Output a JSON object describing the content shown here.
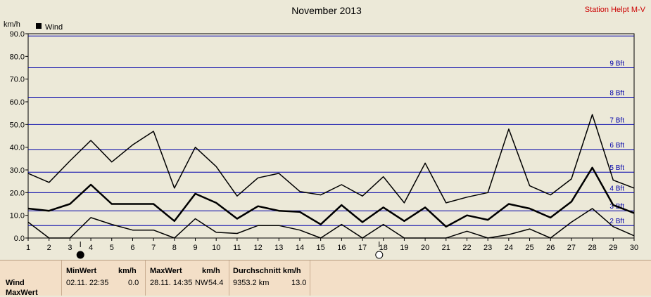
{
  "chart_data": {
    "type": "line",
    "title": "November 2013",
    "station": "Station Helpt M-V",
    "ylabel": "km/h",
    "legend": "Wind",
    "ylim": [
      0,
      90
    ],
    "xlim": [
      1,
      30
    ],
    "yticks": [
      "0.0",
      "10.0",
      "20.0",
      "30.0",
      "40.0",
      "50.0",
      "60.0",
      "70.0",
      "80.0",
      "90.0"
    ],
    "x": [
      1,
      2,
      3,
      4,
      5,
      6,
      7,
      8,
      9,
      10,
      11,
      12,
      13,
      14,
      15,
      16,
      17,
      18,
      19,
      20,
      21,
      22,
      23,
      24,
      25,
      26,
      27,
      28,
      29,
      30
    ],
    "beaufort": [
      {
        "label": "2 Bft",
        "value": 5.5
      },
      {
        "label": "3 Bft",
        "value": 12
      },
      {
        "label": "4 Bft",
        "value": 20
      },
      {
        "label": "5 Bft",
        "value": 29
      },
      {
        "label": "6 Bft",
        "value": 39
      },
      {
        "label": "7 Bft",
        "value": 50
      },
      {
        "label": "8 Bft",
        "value": 62
      },
      {
        "label": "9 Bft",
        "value": 75
      },
      {
        "label": "",
        "value": 89
      }
    ],
    "series": [
      {
        "role": "max",
        "values": [
          28.5,
          24.5,
          34,
          43,
          33.5,
          41,
          47,
          22,
          40,
          31.5,
          18.5,
          26.5,
          28.5,
          20.5,
          19,
          23.5,
          18.5,
          27,
          15.5,
          33,
          15.5,
          18,
          20,
          48,
          23,
          19,
          26,
          54.4,
          25.5,
          22
        ]
      },
      {
        "role": "avg",
        "values": [
          13,
          12,
          15,
          23.5,
          15,
          15,
          15,
          7.5,
          19.5,
          15.5,
          8.5,
          14,
          12,
          11.5,
          6,
          14.5,
          7,
          13.5,
          7.5,
          13.5,
          5,
          10,
          8,
          15,
          13,
          9,
          16,
          31,
          14.5,
          11
        ]
      },
      {
        "role": "min",
        "values": [
          7,
          0,
          0,
          9,
          6,
          3.5,
          3.5,
          0,
          8.5,
          2.5,
          2,
          5.5,
          5.5,
          3.5,
          0,
          6,
          0,
          6,
          0,
          0,
          0,
          3,
          0,
          1.5,
          4,
          0,
          7,
          13,
          5,
          1
        ]
      }
    ],
    "moon_markers": [
      {
        "x": 3.5,
        "phase": "new"
      },
      {
        "x": 17.8,
        "phase": "full"
      }
    ]
  },
  "summary": {
    "row_label": "Wind",
    "row_label2": "MaxWert",
    "min_header": "MinWert",
    "min_unit": "km/h",
    "min_time": "02.11.  22:35",
    "min_value": "0.0",
    "max_header": "MaxWert",
    "max_unit": "km/h",
    "max_time": "28.11.  14:35",
    "max_dir": "NW",
    "max_value": "54.4",
    "avg_header": "Durchschnitt km/h",
    "avg_distance": "9353.2 km",
    "avg_value": "13.0"
  }
}
